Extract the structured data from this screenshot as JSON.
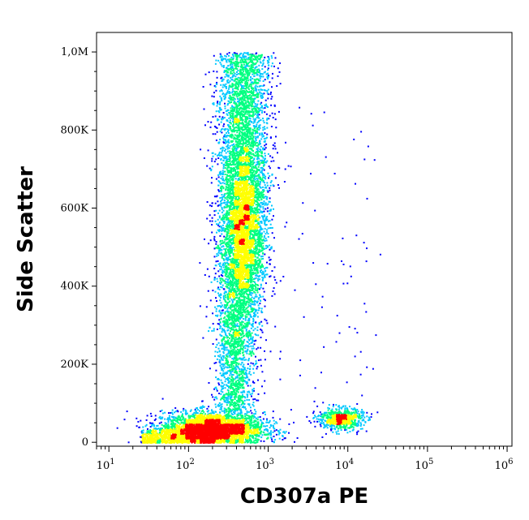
{
  "chart_data": {
    "type": "scatter",
    "style": "density-colored flow cytometry dot plot",
    "xlabel": "CD307a PE",
    "ylabel": "Side Scatter",
    "x_scale": "log",
    "xlim": [
      7,
      1150000
    ],
    "x_ticks": [
      {
        "value": 10,
        "base": "10",
        "exp": "1"
      },
      {
        "value": 100,
        "base": "10",
        "exp": "2"
      },
      {
        "value": 1000,
        "base": "10",
        "exp": "3"
      },
      {
        "value": 10000,
        "base": "10",
        "exp": "4"
      },
      {
        "value": 100000,
        "base": "10",
        "exp": "5"
      },
      {
        "value": 1000000,
        "base": "10",
        "exp": "6"
      }
    ],
    "y_scale": "linear",
    "ylim": [
      -10000,
      1050000
    ],
    "y_ticks": [
      {
        "value": 0,
        "label": "0"
      },
      {
        "value": 200000,
        "label": "200K"
      },
      {
        "value": 400000,
        "label": "400K"
      },
      {
        "value": 600000,
        "label": "600K"
      },
      {
        "value": 800000,
        "label": "800K"
      },
      {
        "value": 1000000,
        "label": "1,0M"
      }
    ],
    "grid": false,
    "legend": "none",
    "density_colors": [
      "#0000ff",
      "#00c8ff",
      "#00ff80",
      "#ffff00",
      "#ff0000"
    ],
    "populations": [
      {
        "center_x": 200,
        "center_y": 35000,
        "density": "highest"
      },
      {
        "center_x": 500,
        "center_y": 560000,
        "density": "high"
      },
      {
        "center_x": 8000,
        "center_y": 60000,
        "density": "medium"
      }
    ]
  }
}
